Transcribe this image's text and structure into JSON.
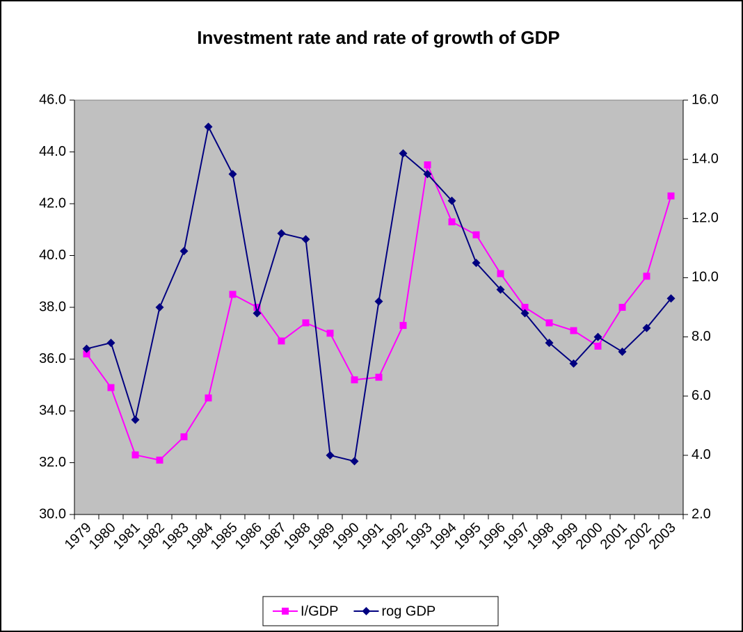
{
  "chart_data": {
    "type": "line",
    "title": "Investment rate and rate of growth of GDP",
    "categories": [
      "1979",
      "1980",
      "1981",
      "1982",
      "1983",
      "1984",
      "1985",
      "1986",
      "1987",
      "1988",
      "1989",
      "1990",
      "1991",
      "1992",
      "1993",
      "1994",
      "1995",
      "1996",
      "1997",
      "1998",
      "1999",
      "2000",
      "2001",
      "2002",
      "2003"
    ],
    "series": [
      {
        "name": "I/GDP",
        "color": "#ff00ff",
        "marker": "square",
        "values": [
          36.2,
          34.9,
          32.3,
          32.1,
          33.0,
          34.5,
          38.5,
          38.0,
          36.7,
          37.4,
          37.0,
          35.2,
          35.3,
          37.3,
          43.5,
          41.3,
          40.8,
          39.3,
          38.0,
          37.4,
          37.1,
          36.5,
          38.0,
          39.2,
          42.3
        ]
      },
      {
        "name": "rog GDP",
        "color": "#000080",
        "marker": "diamond",
        "axis": "y2",
        "values": [
          7.6,
          7.8,
          5.2,
          9.0,
          10.9,
          15.1,
          13.5,
          8.8,
          11.5,
          11.3,
          4.0,
          3.8,
          9.2,
          14.2,
          13.5,
          12.6,
          10.5,
          9.6,
          8.8,
          7.8,
          7.1,
          8.0,
          7.5,
          8.3,
          9.3
        ]
      }
    ],
    "ylim": [
      30,
      46
    ],
    "yticks": [
      {
        "value": 30,
        "label": "30.0"
      },
      {
        "value": 32,
        "label": "32.0"
      },
      {
        "value": 34,
        "label": "34.0"
      },
      {
        "value": 36,
        "label": "36.0"
      },
      {
        "value": 38,
        "label": "38.0"
      },
      {
        "value": 40,
        "label": "40.0"
      },
      {
        "value": 42,
        "label": "42.0"
      },
      {
        "value": 44,
        "label": "44.0"
      },
      {
        "value": 46,
        "label": "46.0"
      }
    ],
    "y2lim": [
      2,
      16
    ],
    "y2ticks": [
      {
        "value": 2,
        "label": "2.0"
      },
      {
        "value": 4,
        "label": "4.0"
      },
      {
        "value": 6,
        "label": "6.0"
      },
      {
        "value": 8,
        "label": "8.0"
      },
      {
        "value": 10,
        "label": "10.0"
      },
      {
        "value": 12,
        "label": "12.0"
      },
      {
        "value": 14,
        "label": "14.0"
      },
      {
        "value": 16,
        "label": "16.0"
      }
    ],
    "plot_background": "#c0c0c0",
    "legend": "bottom"
  }
}
